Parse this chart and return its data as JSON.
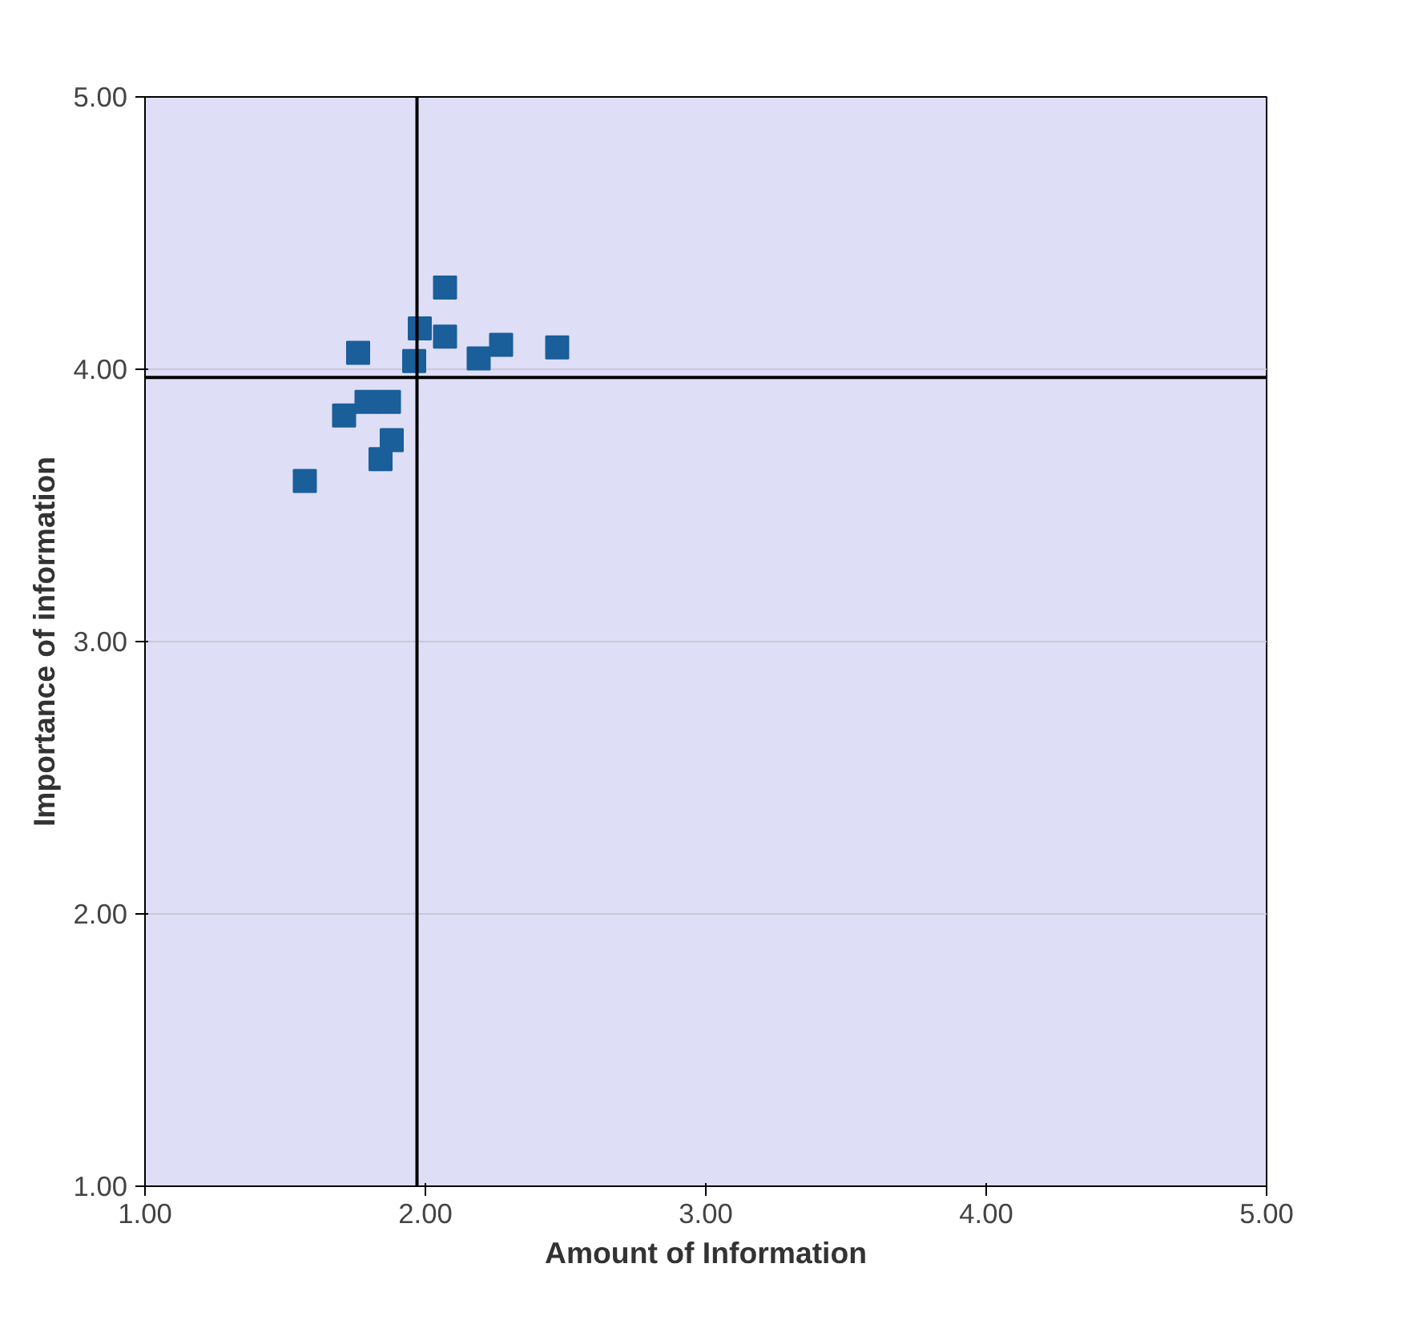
{
  "chart_data": {
    "type": "scatter",
    "xlabel": "Amount of Information",
    "ylabel": "Importance of information",
    "x": [
      2.07,
      1.98,
      2.07,
      1.76,
      1.96,
      2.19,
      2.27,
      2.47,
      1.79,
      1.87,
      1.71,
      1.88,
      1.84,
      1.57
    ],
    "series": [
      {
        "color": "#1a5e9a",
        "values": [
          4.3,
          4.15,
          4.12,
          4.06,
          4.03,
          4.04,
          4.09,
          4.08,
          3.88,
          3.88,
          3.83,
          3.74,
          3.67,
          3.59
        ]
      }
    ],
    "marker": "square",
    "xlim": [
      1,
      5
    ],
    "ylim": [
      1,
      5
    ],
    "xticks": [
      {
        "value": 1,
        "label": "1.00"
      },
      {
        "value": 2,
        "label": "2.00"
      },
      {
        "value": 3,
        "label": "3.00"
      },
      {
        "value": 4,
        "label": "4.00"
      },
      {
        "value": 5,
        "label": "5.00"
      }
    ],
    "yticks": [
      {
        "value": 1,
        "label": "1.00"
      },
      {
        "value": 2,
        "label": "2.00"
      },
      {
        "value": 3,
        "label": "3.00"
      },
      {
        "value": 4,
        "label": "4.00"
      },
      {
        "value": 5,
        "label": "5.00"
      }
    ],
    "grid": "y",
    "ref_lines": [
      {
        "axis": "x",
        "value": 1.97,
        "color": "#000000"
      },
      {
        "axis": "y",
        "value": 3.97,
        "color": "#000000"
      }
    ]
  }
}
